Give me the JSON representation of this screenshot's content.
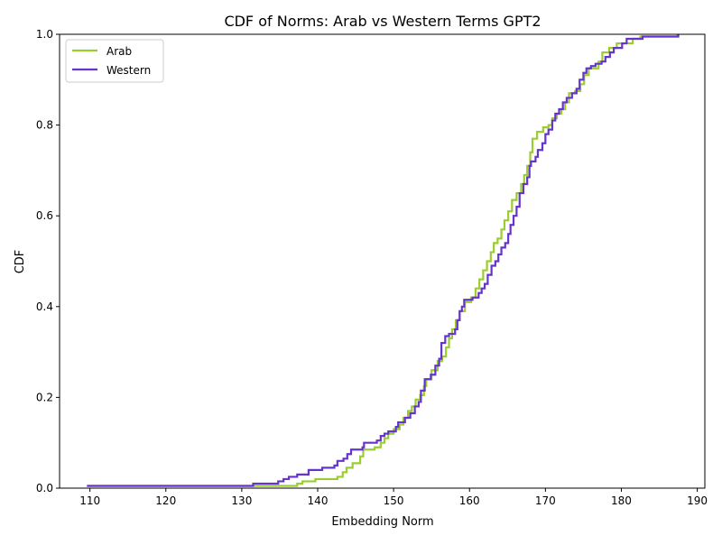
{
  "chart_data": {
    "type": "line",
    "step": true,
    "title": "CDF of Norms: Arab vs Western Terms GPT2",
    "xlabel": "Embedding Norm",
    "ylabel": "CDF",
    "xlim": [
      106,
      191
    ],
    "ylim": [
      0.0,
      1.0
    ],
    "x_ticks": [
      110,
      120,
      130,
      140,
      150,
      160,
      170,
      180,
      190
    ],
    "y_ticks": [
      0.0,
      0.2,
      0.4,
      0.6,
      0.8,
      1.0
    ],
    "x_tick_labels": [
      "110",
      "120",
      "130",
      "140",
      "150",
      "160",
      "170",
      "180",
      "190"
    ],
    "y_tick_labels": [
      "0.0",
      "0.2",
      "0.4",
      "0.6",
      "0.8",
      "1.0"
    ],
    "grid": false,
    "legend_position": "upper left",
    "series": [
      {
        "name": "Arab",
        "color": "#9acd32",
        "points": [
          [
            109.7,
            0.005
          ],
          [
            136.5,
            0.005
          ],
          [
            137.3,
            0.01
          ],
          [
            138.0,
            0.015
          ],
          [
            139.7,
            0.02
          ],
          [
            142.0,
            0.02
          ],
          [
            142.6,
            0.025
          ],
          [
            143.3,
            0.035
          ],
          [
            143.8,
            0.045
          ],
          [
            144.6,
            0.055
          ],
          [
            145.6,
            0.07
          ],
          [
            146.0,
            0.085
          ],
          [
            147.5,
            0.09
          ],
          [
            148.3,
            0.1
          ],
          [
            148.8,
            0.11
          ],
          [
            149.3,
            0.12
          ],
          [
            150.0,
            0.13
          ],
          [
            150.8,
            0.14
          ],
          [
            151.3,
            0.155
          ],
          [
            151.9,
            0.17
          ],
          [
            152.4,
            0.18
          ],
          [
            152.9,
            0.195
          ],
          [
            153.5,
            0.205
          ],
          [
            154.0,
            0.225
          ],
          [
            154.3,
            0.24
          ],
          [
            155.0,
            0.26
          ],
          [
            155.8,
            0.28
          ],
          [
            156.4,
            0.29
          ],
          [
            156.9,
            0.31
          ],
          [
            157.3,
            0.33
          ],
          [
            157.7,
            0.35
          ],
          [
            158.2,
            0.37
          ],
          [
            158.7,
            0.39
          ],
          [
            159.4,
            0.41
          ],
          [
            160.2,
            0.42
          ],
          [
            160.8,
            0.44
          ],
          [
            161.3,
            0.46
          ],
          [
            161.8,
            0.48
          ],
          [
            162.3,
            0.5
          ],
          [
            162.8,
            0.52
          ],
          [
            163.2,
            0.54
          ],
          [
            163.7,
            0.55
          ],
          [
            164.2,
            0.57
          ],
          [
            164.6,
            0.59
          ],
          [
            165.1,
            0.61
          ],
          [
            165.6,
            0.635
          ],
          [
            166.2,
            0.65
          ],
          [
            166.8,
            0.67
          ],
          [
            167.2,
            0.69
          ],
          [
            167.6,
            0.71
          ],
          [
            168.0,
            0.74
          ],
          [
            168.3,
            0.77
          ],
          [
            168.9,
            0.785
          ],
          [
            169.7,
            0.795
          ],
          [
            170.4,
            0.8
          ],
          [
            170.9,
            0.815
          ],
          [
            171.5,
            0.825
          ],
          [
            172.1,
            0.835
          ],
          [
            172.6,
            0.85
          ],
          [
            173.1,
            0.87
          ],
          [
            173.9,
            0.875
          ],
          [
            174.6,
            0.89
          ],
          [
            175.1,
            0.91
          ],
          [
            175.7,
            0.925
          ],
          [
            177.0,
            0.94
          ],
          [
            177.5,
            0.96
          ],
          [
            178.4,
            0.97
          ],
          [
            179.4,
            0.98
          ],
          [
            181.5,
            0.99
          ],
          [
            182.5,
            0.995
          ],
          [
            187.4,
            1.0
          ]
        ]
      },
      {
        "name": "Western",
        "color": "#6633cc",
        "points": [
          [
            109.6,
            0.005
          ],
          [
            131.4,
            0.005
          ],
          [
            131.5,
            0.01
          ],
          [
            134.6,
            0.01
          ],
          [
            134.8,
            0.015
          ],
          [
            135.5,
            0.02
          ],
          [
            136.2,
            0.025
          ],
          [
            137.3,
            0.03
          ],
          [
            138.8,
            0.04
          ],
          [
            140.6,
            0.045
          ],
          [
            142.2,
            0.05
          ],
          [
            142.6,
            0.06
          ],
          [
            143.4,
            0.065
          ],
          [
            143.9,
            0.075
          ],
          [
            144.4,
            0.085
          ],
          [
            145.9,
            0.09
          ],
          [
            146.1,
            0.1
          ],
          [
            147.8,
            0.105
          ],
          [
            148.3,
            0.115
          ],
          [
            148.8,
            0.12
          ],
          [
            149.3,
            0.125
          ],
          [
            150.3,
            0.135
          ],
          [
            150.6,
            0.145
          ],
          [
            151.5,
            0.155
          ],
          [
            152.2,
            0.165
          ],
          [
            152.8,
            0.18
          ],
          [
            153.3,
            0.19
          ],
          [
            153.6,
            0.215
          ],
          [
            154.1,
            0.24
          ],
          [
            154.9,
            0.25
          ],
          [
            155.5,
            0.27
          ],
          [
            156.0,
            0.285
          ],
          [
            156.3,
            0.32
          ],
          [
            156.8,
            0.335
          ],
          [
            157.3,
            0.34
          ],
          [
            158.1,
            0.35
          ],
          [
            158.4,
            0.37
          ],
          [
            158.7,
            0.39
          ],
          [
            159.0,
            0.4
          ],
          [
            159.3,
            0.415
          ],
          [
            160.4,
            0.42
          ],
          [
            161.2,
            0.43
          ],
          [
            161.6,
            0.44
          ],
          [
            162.0,
            0.45
          ],
          [
            162.4,
            0.47
          ],
          [
            162.9,
            0.49
          ],
          [
            163.4,
            0.5
          ],
          [
            163.8,
            0.515
          ],
          [
            164.2,
            0.53
          ],
          [
            164.7,
            0.54
          ],
          [
            165.1,
            0.56
          ],
          [
            165.4,
            0.58
          ],
          [
            165.8,
            0.6
          ],
          [
            166.2,
            0.62
          ],
          [
            166.6,
            0.65
          ],
          [
            167.1,
            0.67
          ],
          [
            167.6,
            0.685
          ],
          [
            167.9,
            0.71
          ],
          [
            168.1,
            0.72
          ],
          [
            168.7,
            0.73
          ],
          [
            169.0,
            0.745
          ],
          [
            169.6,
            0.76
          ],
          [
            170.0,
            0.78
          ],
          [
            170.4,
            0.79
          ],
          [
            170.9,
            0.81
          ],
          [
            171.3,
            0.825
          ],
          [
            171.8,
            0.835
          ],
          [
            172.3,
            0.85
          ],
          [
            172.8,
            0.86
          ],
          [
            173.5,
            0.87
          ],
          [
            174.1,
            0.88
          ],
          [
            174.5,
            0.9
          ],
          [
            175.0,
            0.915
          ],
          [
            175.4,
            0.925
          ],
          [
            176.0,
            0.93
          ],
          [
            176.6,
            0.935
          ],
          [
            177.4,
            0.94
          ],
          [
            177.9,
            0.95
          ],
          [
            178.5,
            0.96
          ],
          [
            179.0,
            0.97
          ],
          [
            180.1,
            0.98
          ],
          [
            180.7,
            0.99
          ],
          [
            182.8,
            0.995
          ],
          [
            187.5,
            1.0
          ]
        ]
      }
    ]
  }
}
